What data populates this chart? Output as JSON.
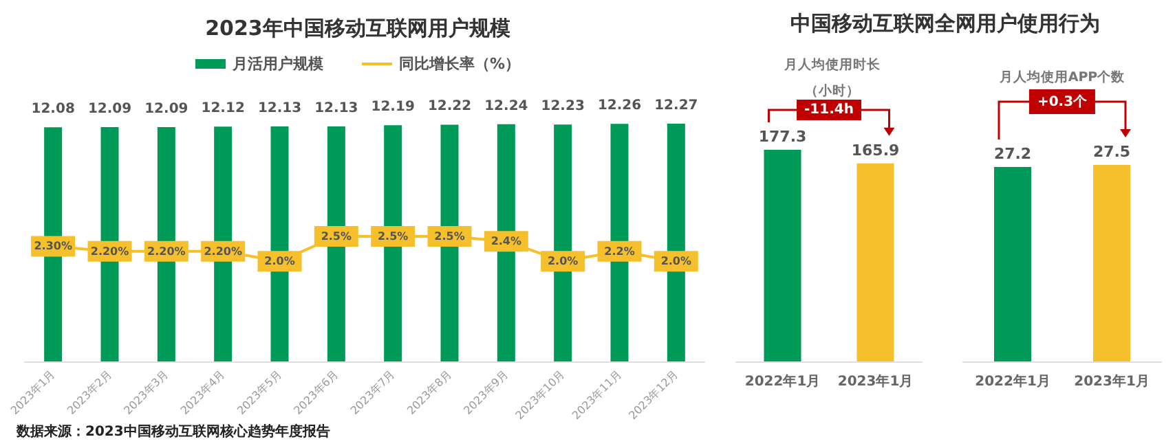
{
  "chart_data": [
    {
      "type": "bar",
      "title": "2023年中国移动互联网用户规模",
      "categories": [
        "2023年1月",
        "2023年2月",
        "2023年3月",
        "2023年4月",
        "2023年5月",
        "2023年6月",
        "2023年7月",
        "2023年8月",
        "2023年9月",
        "2023年10月",
        "2023年11月",
        "2023年12月"
      ],
      "series": [
        {
          "name": "月活用户规模",
          "type": "bar",
          "color": "#009a58",
          "values": [
            12.08,
            12.09,
            12.09,
            12.12,
            12.13,
            12.13,
            12.19,
            12.22,
            12.24,
            12.23,
            12.26,
            12.27
          ],
          "value_labels": [
            "12.08",
            "12.09",
            "12.09",
            "12.12",
            "12.13",
            "12.13",
            "12.19",
            "12.22",
            "12.24",
            "12.23",
            "12.26",
            "12.27"
          ]
        },
        {
          "name": "同比增长率（%）",
          "type": "line",
          "axis": "y2",
          "color": "#f6c02d",
          "values": [
            2.3,
            2.2,
            2.2,
            2.2,
            2.0,
            2.5,
            2.5,
            2.5,
            2.4,
            2.0,
            2.2,
            2.0
          ],
          "value_labels": [
            "2.30%",
            "2.20%",
            "2.20%",
            "2.20%",
            "2.0%",
            "2.5%",
            "2.5%",
            "2.5%",
            "2.4%",
            "2.0%",
            "2.2%",
            "2.0%"
          ]
        }
      ],
      "tick_labels": "x",
      "legend": "top",
      "marker": "square",
      "line_style": "solid",
      "annotations": [
        "数据来源：2023中国移动互联网核心趋势年度报告"
      ]
    },
    {
      "type": "bar",
      "title": "中国移动互联网全网用户使用行为",
      "subtitle": "月人均使用时长（小时）",
      "categories": [
        "2022年1月",
        "2023年1月"
      ],
      "values": [
        177.3,
        165.9
      ],
      "colors": [
        "#009a58",
        "#f6c02d"
      ],
      "tick_labels": "x",
      "data_labels": true,
      "annotations": [
        "-11.4h"
      ]
    },
    {
      "type": "bar",
      "subtitle": "月人均使用APP个数",
      "categories": [
        "2022年1月",
        "2023年1月"
      ],
      "values": [
        27.2,
        27.5
      ],
      "colors": [
        "#009a58",
        "#f6c02d"
      ],
      "tick_labels": "x",
      "data_labels": true,
      "annotations": [
        "+0.3个"
      ]
    }
  ]
}
